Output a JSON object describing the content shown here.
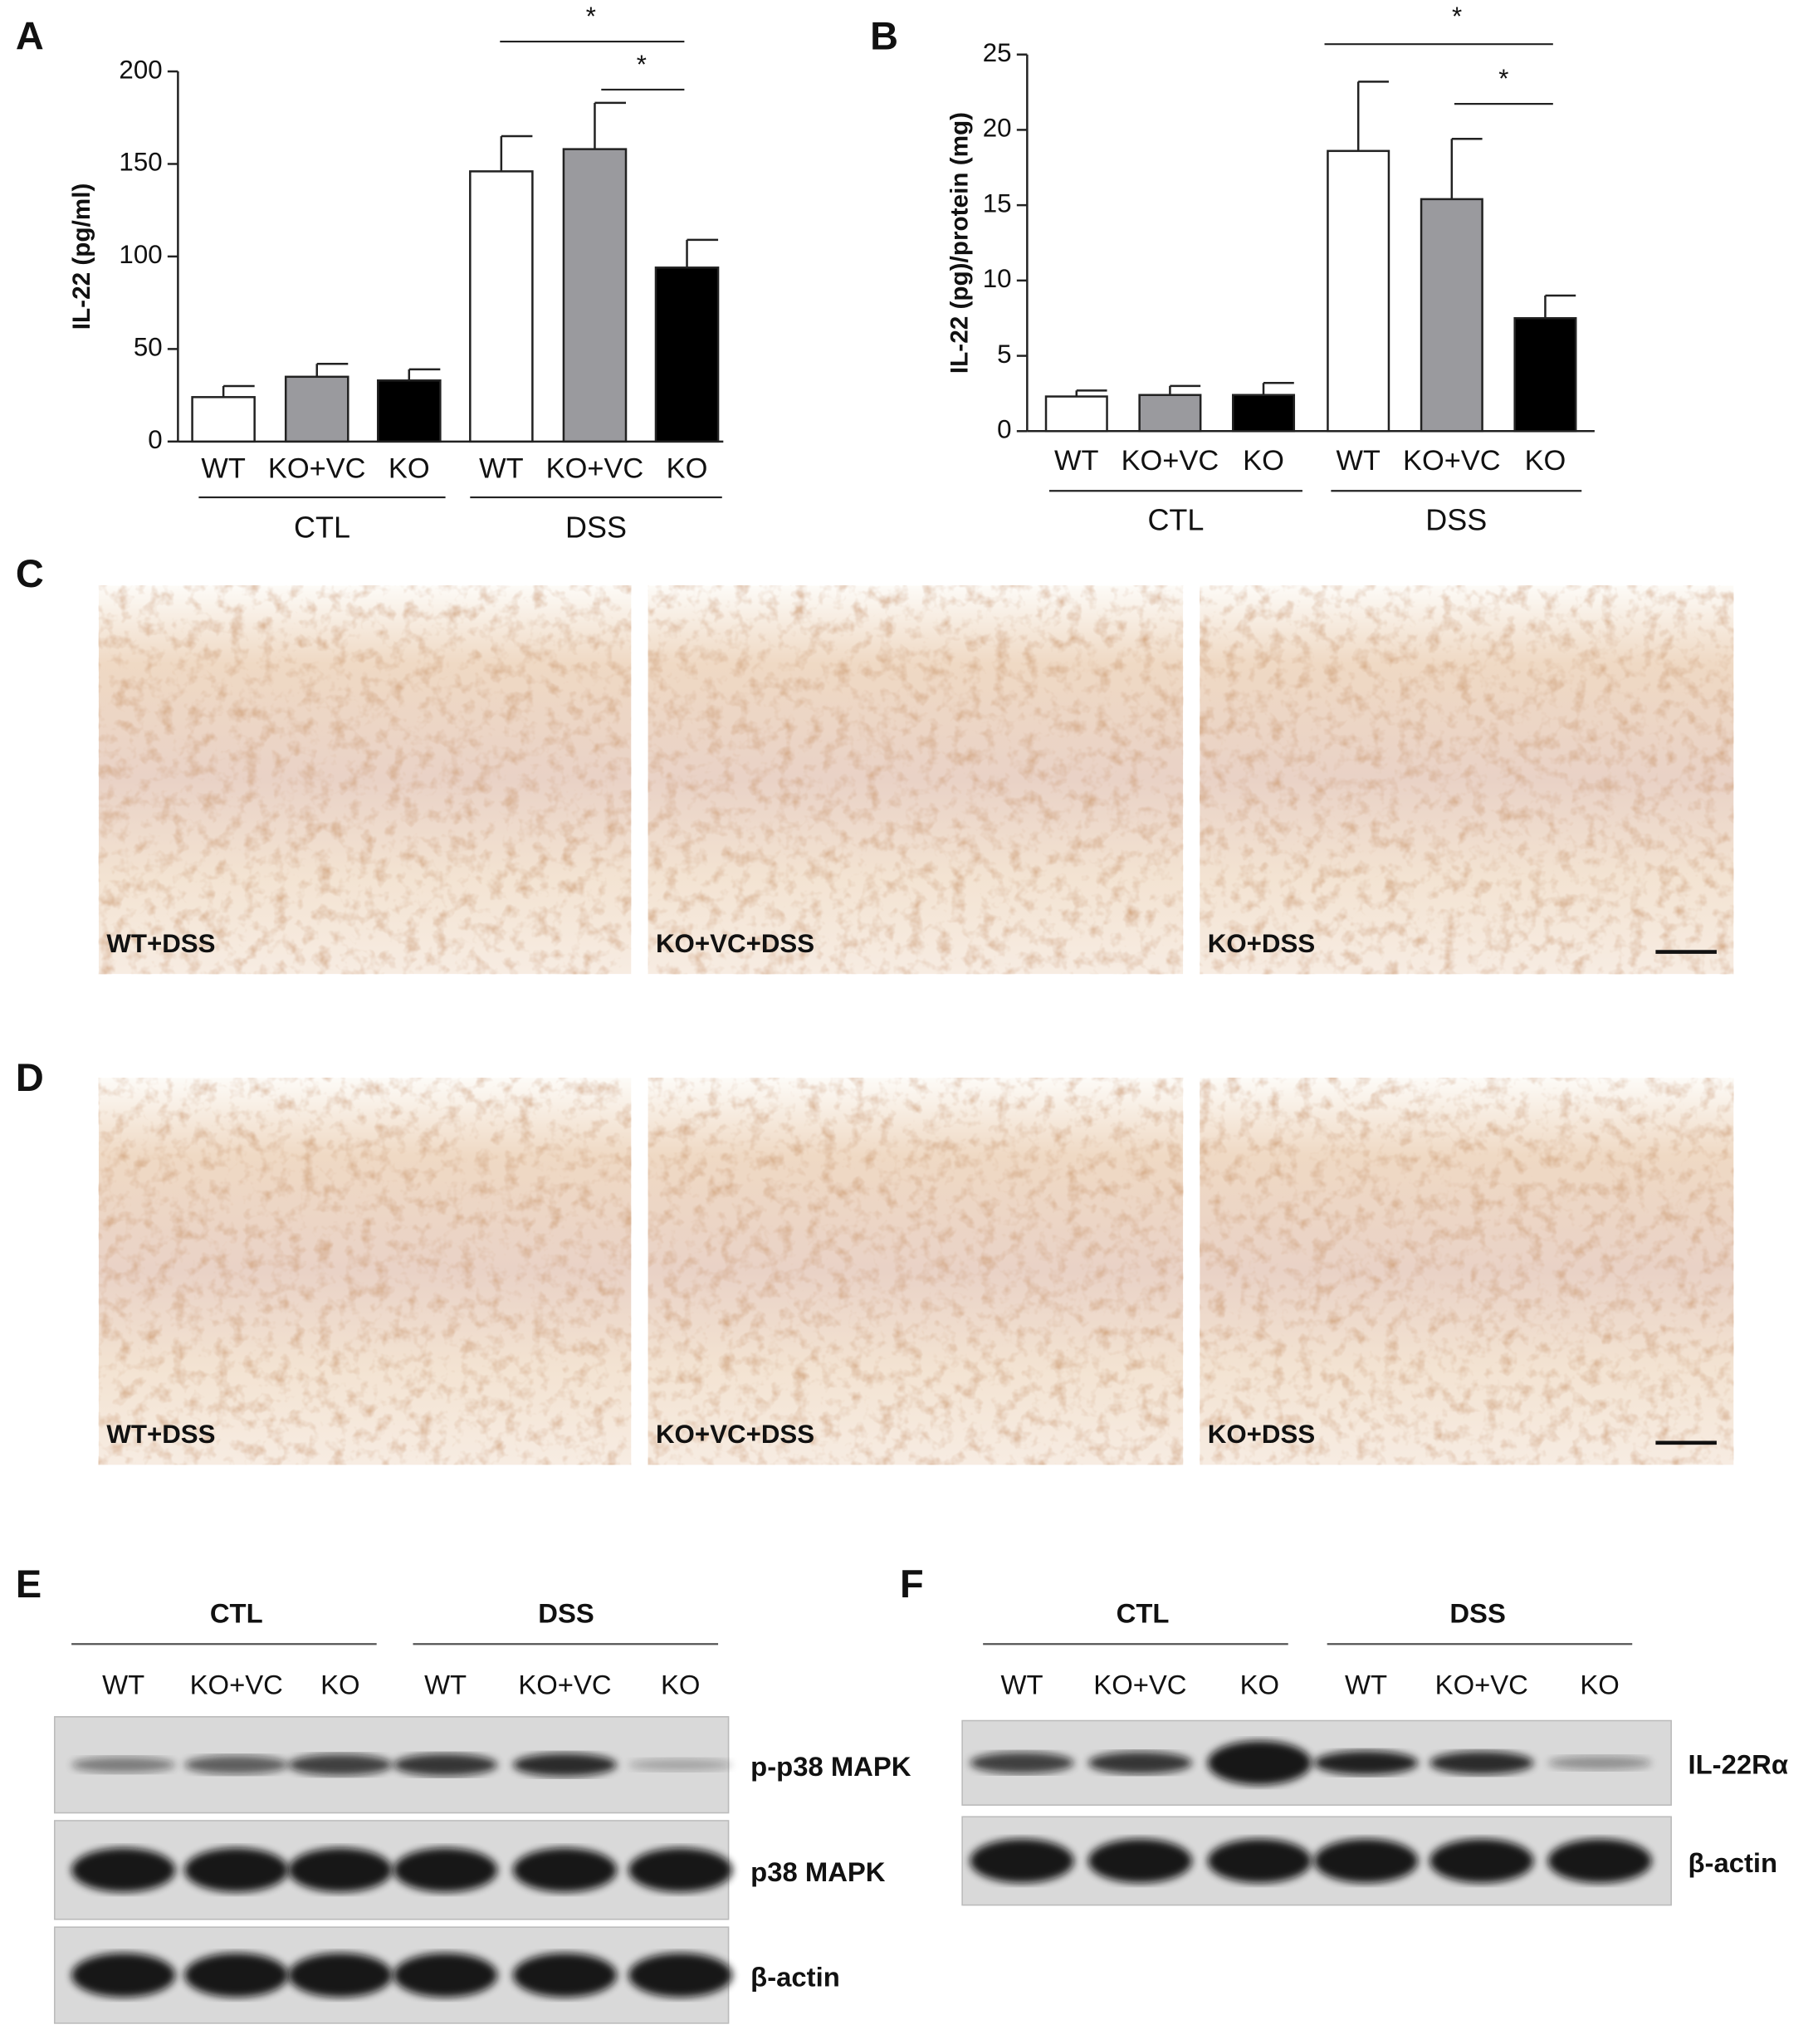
{
  "panel_labels": [
    "A",
    "B",
    "C",
    "D",
    "E",
    "F"
  ],
  "chart_data": [
    {
      "type": "bar",
      "ylabel": "IL-22 (pg/ml)",
      "categories": [
        "WT",
        "KO+VC",
        "KO",
        "WT",
        "KO+VC",
        "KO"
      ],
      "values": [
        24,
        35,
        33,
        146,
        158,
        94
      ],
      "errors": [
        6,
        7,
        6,
        19,
        25,
        15
      ],
      "colors": [
        "#ffffff",
        "#9a9a9e",
        "#000000",
        "#ffffff",
        "#9a9a9e",
        "#000000"
      ],
      "groups": [
        "CTL",
        "DSS"
      ],
      "annotations": [
        "*",
        "*"
      ],
      "ylim": [
        0,
        200
      ],
      "yticks": [
        0,
        50,
        100,
        150,
        200
      ]
    },
    {
      "type": "bar",
      "ylabel": "IL-22 (pg)/protein (mg)",
      "categories": [
        "WT",
        "KO+VC",
        "KO",
        "WT",
        "KO+VC",
        "KO"
      ],
      "values": [
        2.3,
        2.4,
        2.4,
        18.6,
        15.4,
        7.5
      ],
      "errors": [
        0.4,
        0.6,
        0.8,
        4.6,
        4.0,
        1.5
      ],
      "colors": [
        "#ffffff",
        "#9a9a9e",
        "#000000",
        "#ffffff",
        "#9a9a9e",
        "#000000"
      ],
      "groups": [
        "CTL",
        "DSS"
      ],
      "annotations": [
        "*",
        "*"
      ],
      "ylim": [
        0,
        25
      ],
      "yticks": [
        0,
        5,
        10,
        15,
        20,
        25
      ]
    }
  ],
  "micrographs": {
    "C": [
      "WT+DSS",
      "KO+VC+DSS",
      "KO+DSS"
    ],
    "D": [
      "WT+DSS",
      "KO+VC+DSS",
      "KO+DSS"
    ]
  },
  "blots": {
    "E": {
      "groups": [
        "CTL",
        "DSS"
      ],
      "lanes": [
        "WT",
        "KO+VC",
        "KO",
        "WT",
        "KO+VC",
        "KO"
      ],
      "rows": [
        "p-p38 MAPK",
        "p38 MAPK",
        "β-actin"
      ]
    },
    "F": {
      "groups": [
        "CTL",
        "DSS"
      ],
      "lanes": [
        "WT",
        "KO+VC",
        "KO",
        "WT",
        "KO+VC",
        "KO"
      ],
      "rows": [
        "IL-22Rα",
        "β-actin"
      ]
    }
  }
}
